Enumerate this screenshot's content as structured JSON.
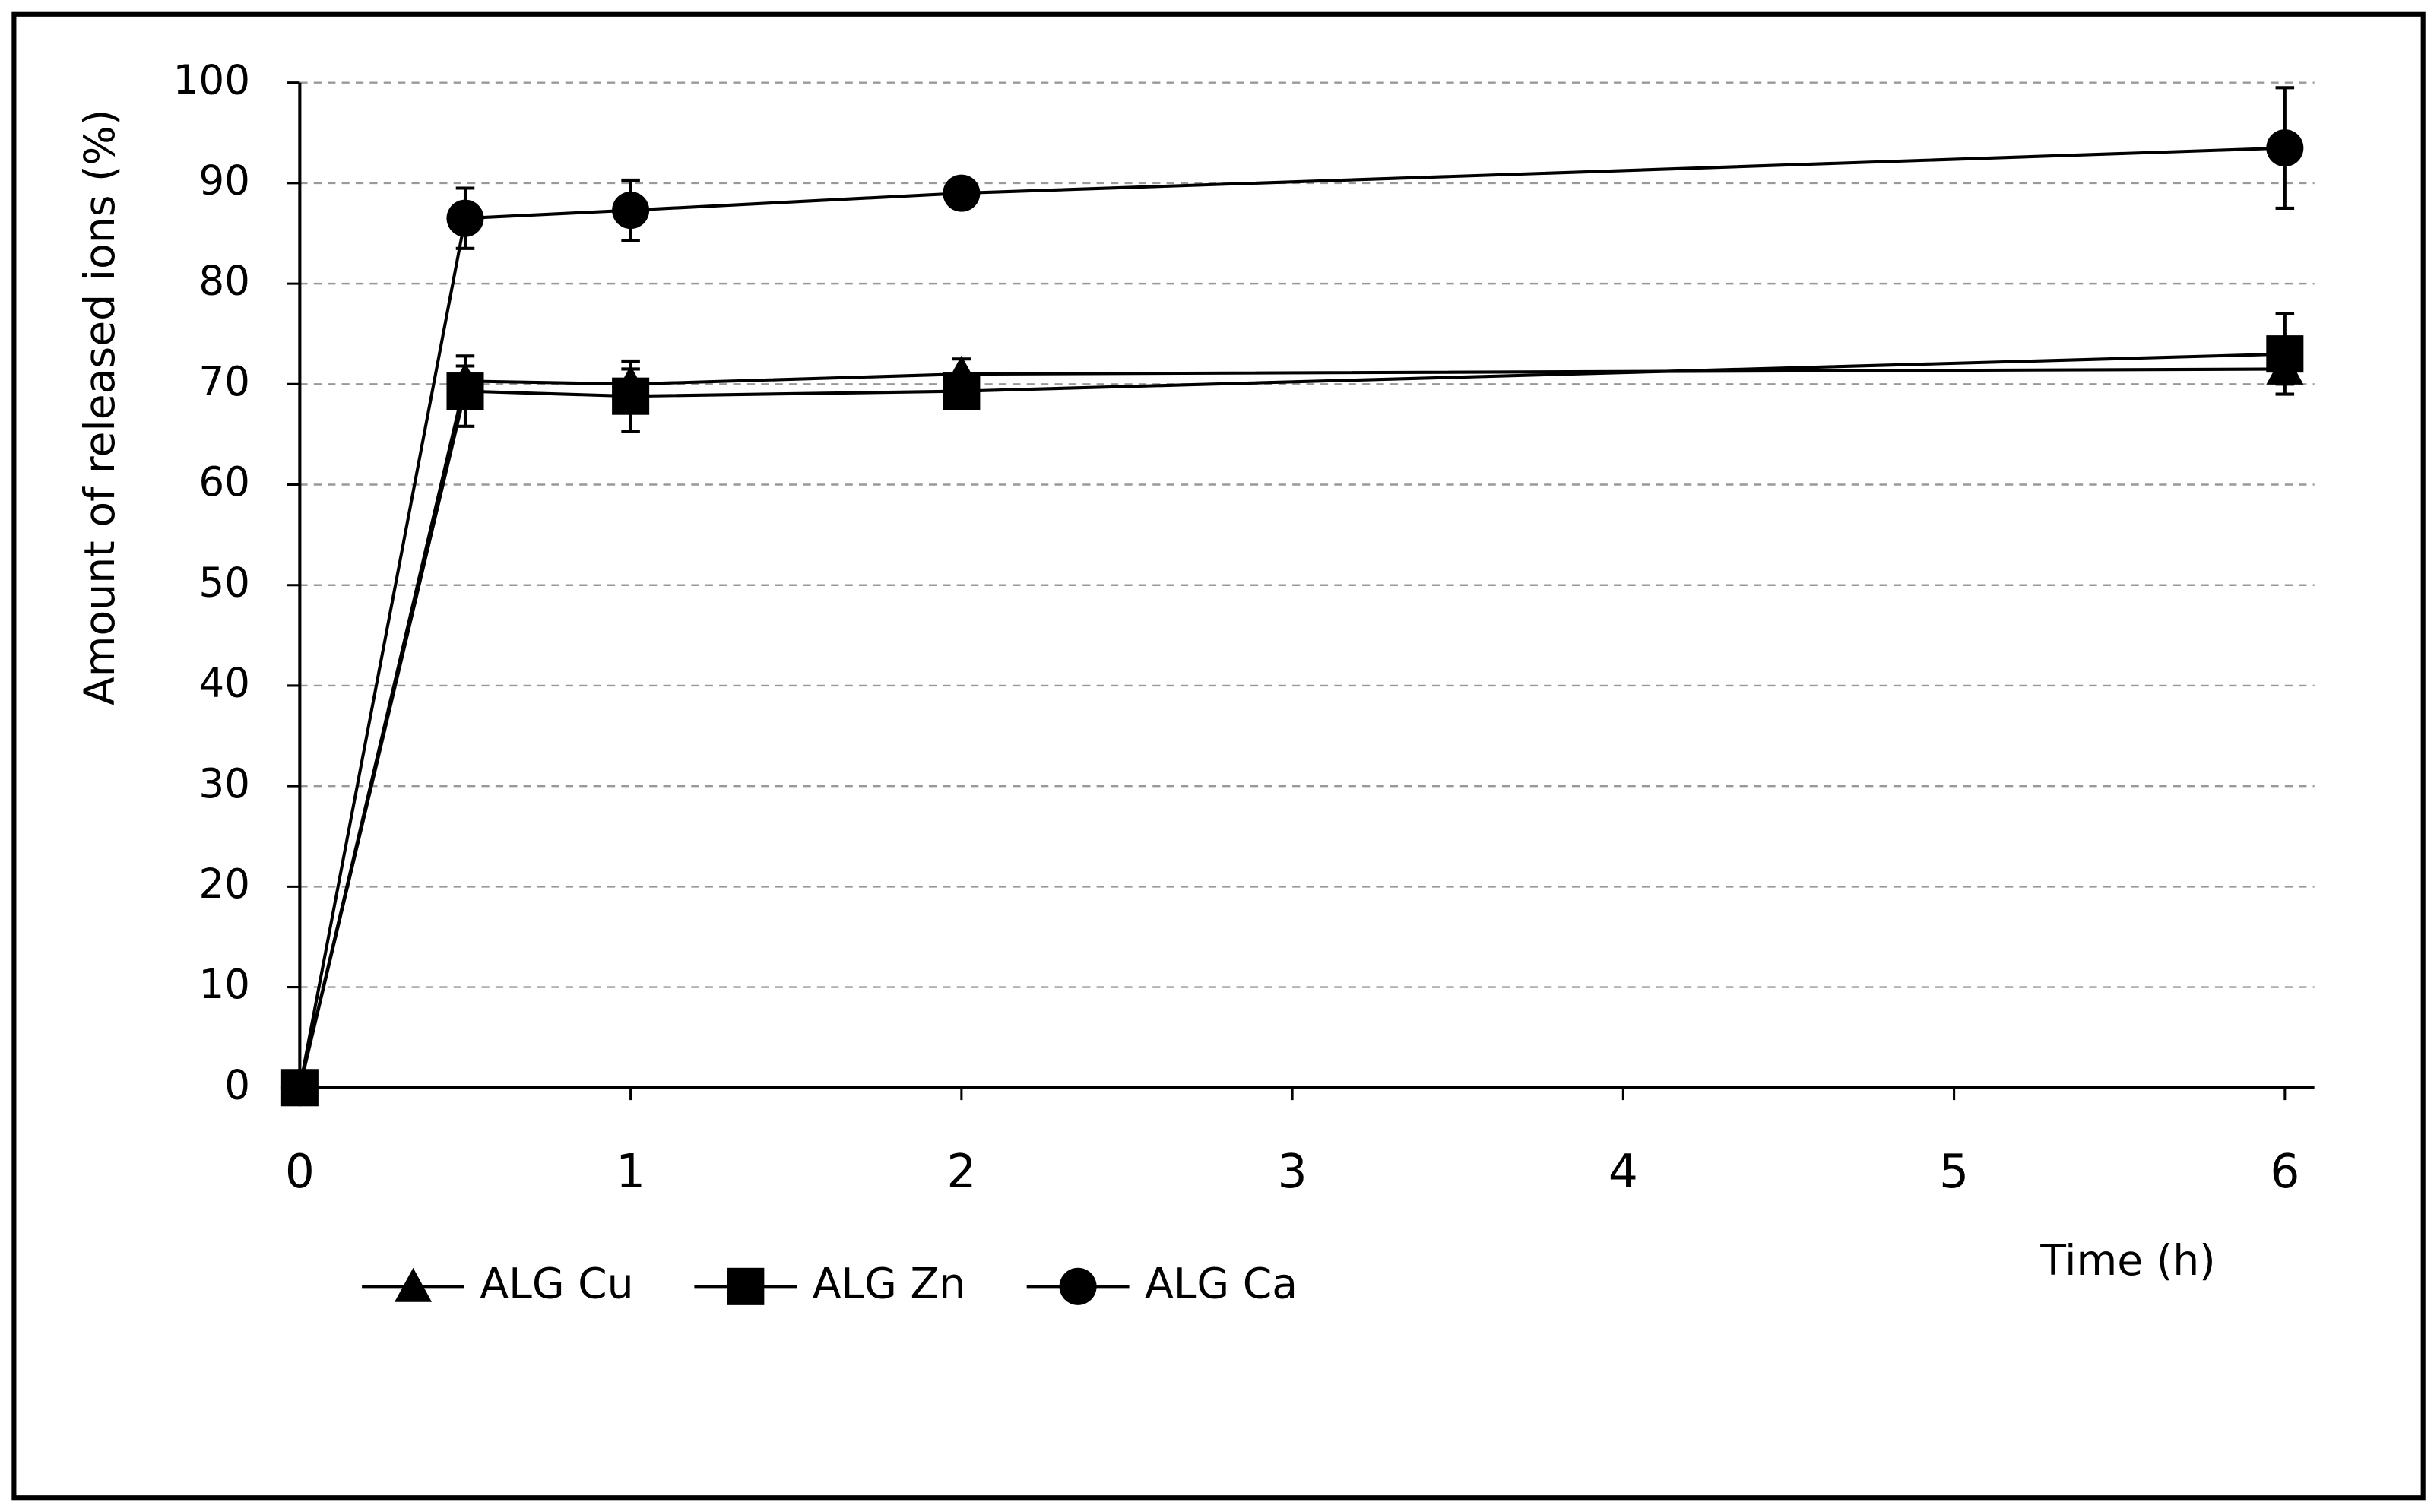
{
  "chart_data": {
    "type": "line",
    "x_label": "Time (h)",
    "y_label": "Amount of released ions (%)",
    "x": [
      0,
      0.5,
      1,
      2,
      6
    ],
    "xlim": [
      0,
      6
    ],
    "xticks": [
      0,
      1,
      2,
      3,
      4,
      5,
      6
    ],
    "ylim": [
      0,
      100
    ],
    "yticks": [
      0,
      10,
      20,
      30,
      40,
      50,
      60,
      70,
      80,
      90,
      100
    ],
    "grid": true,
    "legend": "bottom",
    "series": [
      {
        "name": "ALG Cu",
        "color": "#000000",
        "marker": "triangle",
        "values": [
          0,
          70.3,
          70,
          71,
          71.5
        ],
        "errors": [
          null,
          1.5,
          1.5,
          1.5,
          1.5
        ]
      },
      {
        "name": "ALG Zn",
        "color": "#000000",
        "marker": "square",
        "values": [
          0,
          69.3,
          68.8,
          69.3,
          73
        ],
        "errors": [
          null,
          3.5,
          3.5,
          null,
          4
        ]
      },
      {
        "name": "ALG Ca",
        "color": "#000000",
        "marker": "circle",
        "values": [
          0,
          86.5,
          87.3,
          89,
          93.5
        ],
        "errors": [
          null,
          3,
          3,
          null,
          6
        ]
      }
    ]
  }
}
